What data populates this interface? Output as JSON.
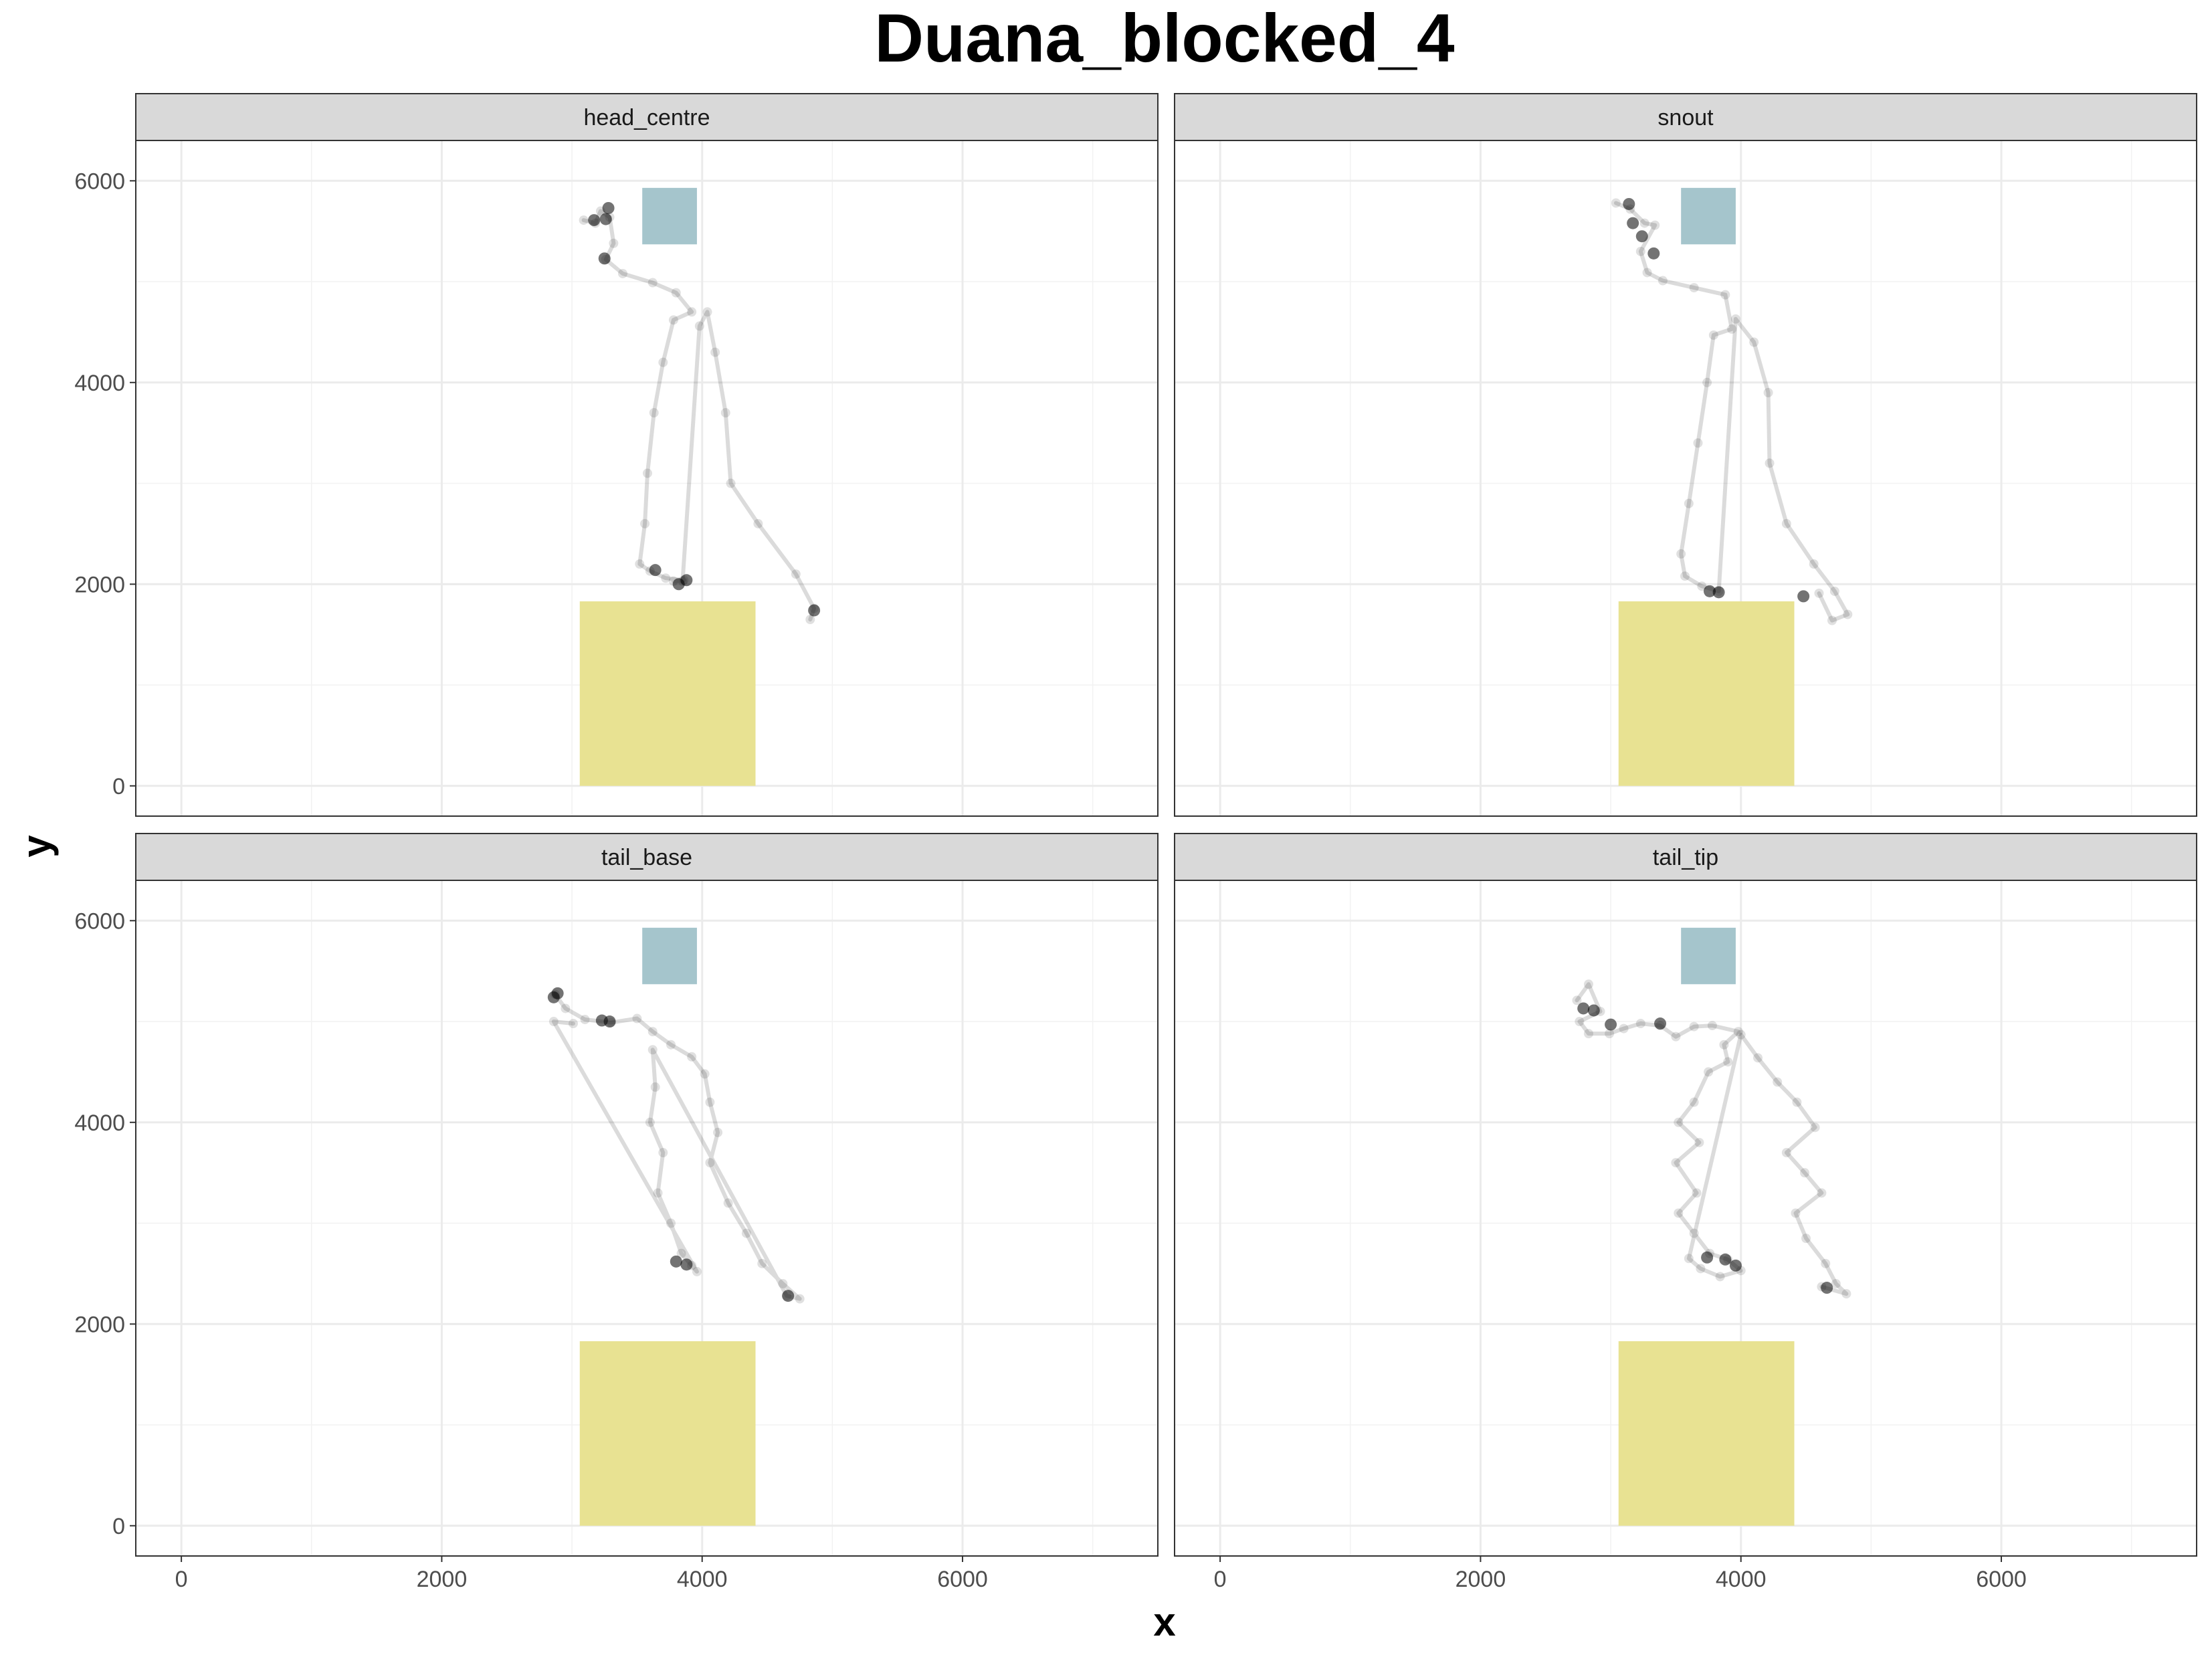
{
  "chart_data": {
    "type": "scatter",
    "title": "Duana_blocked_4",
    "xlabel": "x",
    "ylabel": "y",
    "xlim": [
      -350,
      7500
    ],
    "ylim": [
      -300,
      6400
    ],
    "x_ticks": [
      0,
      2000,
      4000,
      6000
    ],
    "y_ticks": [
      0,
      2000,
      4000,
      6000
    ],
    "grid": true,
    "colors": {
      "points": "#000000",
      "blue_zone": "#a5c5cc",
      "yellow_zone": "#e8e292",
      "strip": "#d9d9d9",
      "grid": "#ebebeb"
    },
    "zones": [
      {
        "name": "blue-zone",
        "xmin": 3540,
        "xmax": 3960,
        "ymin": 5370,
        "ymax": 5930
      },
      {
        "name": "yellow-zone",
        "xmin": 3060,
        "xmax": 4410,
        "ymin": 0,
        "ymax": 1830
      }
    ],
    "panels": [
      {
        "label": "head_centre",
        "path": [
          [
            3090,
            5610
          ],
          [
            3180,
            5580
          ],
          [
            3220,
            5700
          ],
          [
            3290,
            5640
          ],
          [
            3320,
            5380
          ],
          [
            3260,
            5220
          ],
          [
            3390,
            5080
          ],
          [
            3620,
            4990
          ],
          [
            3800,
            4890
          ],
          [
            3920,
            4700
          ],
          [
            3780,
            4620
          ],
          [
            3700,
            4200
          ],
          [
            3630,
            3700
          ],
          [
            3580,
            3100
          ],
          [
            3560,
            2600
          ],
          [
            3520,
            2200
          ],
          [
            3600,
            2130
          ],
          [
            3720,
            2060
          ],
          [
            3860,
            2040
          ],
          [
            3780,
            2030
          ],
          [
            3850,
            2030
          ],
          [
            3980,
            4560
          ],
          [
            4040,
            4700
          ],
          [
            4100,
            4300
          ],
          [
            4180,
            3700
          ],
          [
            4220,
            3000
          ],
          [
            4430,
            2600
          ],
          [
            4720,
            2100
          ],
          [
            4860,
            1760
          ],
          [
            4830,
            1650
          ]
        ],
        "dense": [
          [
            3170,
            5610
          ],
          [
            3260,
            5620
          ],
          [
            3280,
            5730
          ],
          [
            3250,
            5230
          ],
          [
            3640,
            2140
          ],
          [
            3820,
            2000
          ],
          [
            3880,
            2040
          ],
          [
            4860,
            1740
          ]
        ]
      },
      {
        "label": "snout",
        "path": [
          [
            3040,
            5780
          ],
          [
            3150,
            5720
          ],
          [
            3260,
            5580
          ],
          [
            3340,
            5560
          ],
          [
            3230,
            5300
          ],
          [
            3280,
            5090
          ],
          [
            3400,
            5010
          ],
          [
            3640,
            4940
          ],
          [
            3880,
            4870
          ],
          [
            3930,
            4530
          ],
          [
            3790,
            4470
          ],
          [
            3740,
            4000
          ],
          [
            3670,
            3400
          ],
          [
            3600,
            2800
          ],
          [
            3540,
            2300
          ],
          [
            3570,
            2080
          ],
          [
            3700,
            1980
          ],
          [
            3830,
            1930
          ],
          [
            3960,
            4630
          ],
          [
            4100,
            4400
          ],
          [
            4210,
            3900
          ],
          [
            4220,
            3200
          ],
          [
            4350,
            2600
          ],
          [
            4560,
            2200
          ],
          [
            4720,
            1930
          ],
          [
            4820,
            1700
          ],
          [
            4700,
            1640
          ],
          [
            4600,
            1910
          ]
        ],
        "dense": [
          [
            3140,
            5770
          ],
          [
            3170,
            5580
          ],
          [
            3240,
            5450
          ],
          [
            3330,
            5280
          ],
          [
            3760,
            1930
          ],
          [
            3830,
            1920
          ],
          [
            4480,
            1880
          ]
        ]
      },
      {
        "label": "tail_base",
        "path": [
          [
            2870,
            5270
          ],
          [
            2950,
            5130
          ],
          [
            3100,
            5020
          ],
          [
            3300,
            4990
          ],
          [
            3500,
            5030
          ],
          [
            3620,
            4900
          ],
          [
            3760,
            4770
          ],
          [
            3920,
            4650
          ],
          [
            4020,
            4480
          ],
          [
            4060,
            4200
          ],
          [
            4120,
            3900
          ],
          [
            4060,
            3600
          ],
          [
            4200,
            3200
          ],
          [
            4340,
            2900
          ],
          [
            4460,
            2600
          ],
          [
            4620,
            2400
          ],
          [
            4750,
            2250
          ],
          [
            4650,
            2280
          ],
          [
            3620,
            4720
          ],
          [
            3640,
            4350
          ],
          [
            3600,
            4000
          ],
          [
            3700,
            3700
          ],
          [
            3660,
            3300
          ],
          [
            3760,
            3000
          ],
          [
            3840,
            2700
          ],
          [
            3920,
            2580
          ],
          [
            3960,
            2520
          ],
          [
            2860,
            5000
          ],
          [
            3010,
            4980
          ]
        ],
        "dense": [
          [
            2860,
            5240
          ],
          [
            2890,
            5280
          ],
          [
            3230,
            5010
          ],
          [
            3290,
            5000
          ],
          [
            3800,
            2620
          ],
          [
            3880,
            2590
          ],
          [
            4660,
            2280
          ]
        ]
      },
      {
        "label": "tail_tip",
        "path": [
          [
            2740,
            5210
          ],
          [
            2830,
            5370
          ],
          [
            2920,
            5100
          ],
          [
            2760,
            5000
          ],
          [
            2830,
            4880
          ],
          [
            2990,
            4880
          ],
          [
            3100,
            4930
          ],
          [
            3230,
            4980
          ],
          [
            3380,
            4960
          ],
          [
            3500,
            4850
          ],
          [
            3640,
            4950
          ],
          [
            3780,
            4960
          ],
          [
            3980,
            4900
          ],
          [
            3870,
            4770
          ],
          [
            3900,
            4600
          ],
          [
            3750,
            4500
          ],
          [
            3640,
            4200
          ],
          [
            3520,
            4000
          ],
          [
            3680,
            3800
          ],
          [
            3500,
            3600
          ],
          [
            3660,
            3300
          ],
          [
            3520,
            3100
          ],
          [
            3640,
            2900
          ],
          [
            3760,
            2700
          ],
          [
            3900,
            2640
          ],
          [
            4000,
            2530
          ],
          [
            3840,
            2470
          ],
          [
            3690,
            2550
          ],
          [
            3600,
            2650
          ],
          [
            4000,
            4870
          ],
          [
            4130,
            4640
          ],
          [
            4280,
            4400
          ],
          [
            4430,
            4200
          ],
          [
            4570,
            3950
          ],
          [
            4350,
            3700
          ],
          [
            4490,
            3500
          ],
          [
            4620,
            3300
          ],
          [
            4420,
            3100
          ],
          [
            4500,
            2850
          ],
          [
            4650,
            2600
          ],
          [
            4730,
            2400
          ],
          [
            4810,
            2300
          ],
          [
            4620,
            2370
          ]
        ],
        "dense": [
          [
            2790,
            5130
          ],
          [
            2870,
            5110
          ],
          [
            3000,
            4970
          ],
          [
            3380,
            4980
          ],
          [
            3740,
            2660
          ],
          [
            3880,
            2640
          ],
          [
            3960,
            2580
          ],
          [
            4660,
            2360
          ]
        ]
      }
    ]
  }
}
